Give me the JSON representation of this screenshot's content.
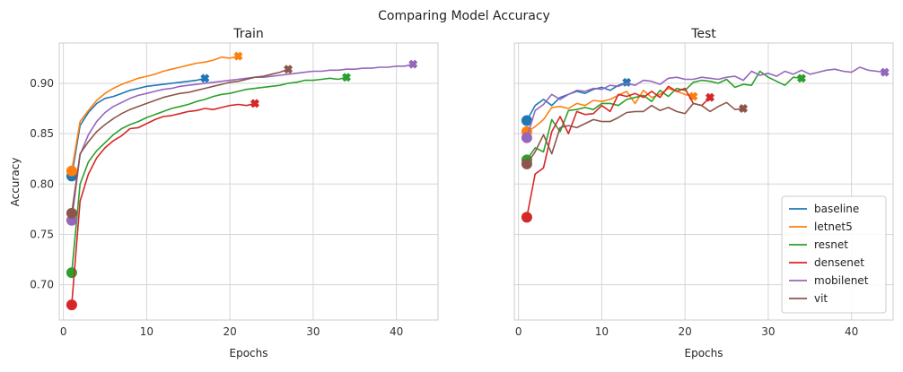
{
  "figure": {
    "title": "Comparing Model Accuracy"
  },
  "colors": {
    "baseline": "#1f77b4",
    "letnet5": "#ff7f0e",
    "resnet": "#2ca02c",
    "densenet": "#d62728",
    "mobilenet": "#9467bd",
    "vit": "#8c564b",
    "grid": "#d5d5d5",
    "axes_edge": "#cccccc"
  },
  "chart_data": [
    {
      "type": "line",
      "title": "Train",
      "xlabel": "Epochs",
      "ylabel": "Accuracy",
      "xlim": [
        -0.5,
        45
      ],
      "ylim": [
        0.665,
        0.94
      ],
      "xticks": [
        0,
        10,
        20,
        30,
        40
      ],
      "yticks": [
        0.7,
        0.75,
        0.8,
        0.85,
        0.9
      ],
      "grid": true,
      "start_marker": "circle",
      "end_marker": "x",
      "series": [
        {
          "name": "baseline",
          "color": "#1f77b4",
          "x": [
            1,
            2,
            3,
            4,
            5,
            6,
            7,
            8,
            9,
            10,
            11,
            12,
            13,
            14,
            15,
            16,
            17
          ],
          "y": [
            0.808,
            0.858,
            0.871,
            0.88,
            0.885,
            0.887,
            0.89,
            0.893,
            0.895,
            0.897,
            0.898,
            0.899,
            0.9,
            0.901,
            0.902,
            0.903,
            0.905
          ]
        },
        {
          "name": "letnet5",
          "color": "#ff7f0e",
          "x": [
            1,
            2,
            3,
            4,
            5,
            6,
            7,
            8,
            9,
            10,
            11,
            12,
            13,
            14,
            15,
            16,
            17,
            18,
            19,
            20,
            21
          ],
          "y": [
            0.813,
            0.862,
            0.873,
            0.883,
            0.89,
            0.895,
            0.899,
            0.902,
            0.905,
            0.907,
            0.909,
            0.912,
            0.914,
            0.916,
            0.918,
            0.92,
            0.921,
            0.923,
            0.926,
            0.925,
            0.927
          ]
        },
        {
          "name": "resnet",
          "color": "#2ca02c",
          "x": [
            1,
            2,
            3,
            4,
            5,
            6,
            7,
            8,
            9,
            10,
            11,
            12,
            13,
            14,
            15,
            16,
            17,
            18,
            19,
            20,
            21,
            22,
            23,
            24,
            25,
            26,
            27,
            28,
            29,
            30,
            31,
            32,
            33,
            34
          ],
          "y": [
            0.712,
            0.8,
            0.822,
            0.833,
            0.841,
            0.849,
            0.855,
            0.859,
            0.862,
            0.866,
            0.869,
            0.872,
            0.875,
            0.877,
            0.879,
            0.882,
            0.884,
            0.887,
            0.889,
            0.89,
            0.892,
            0.894,
            0.895,
            0.896,
            0.897,
            0.898,
            0.9,
            0.901,
            0.903,
            0.903,
            0.904,
            0.905,
            0.904,
            0.906
          ]
        },
        {
          "name": "densenet",
          "color": "#d62728",
          "x": [
            1,
            2,
            3,
            4,
            5,
            6,
            7,
            8,
            9,
            10,
            11,
            12,
            13,
            14,
            15,
            16,
            17,
            18,
            19,
            20,
            21,
            22,
            23
          ],
          "y": [
            0.68,
            0.783,
            0.81,
            0.826,
            0.836,
            0.843,
            0.848,
            0.855,
            0.856,
            0.86,
            0.864,
            0.867,
            0.868,
            0.87,
            0.872,
            0.873,
            0.875,
            0.874,
            0.876,
            0.878,
            0.879,
            0.878,
            0.88
          ]
        },
        {
          "name": "mobilenet",
          "color": "#9467bd",
          "x": [
            1,
            2,
            3,
            4,
            5,
            6,
            7,
            8,
            9,
            10,
            11,
            12,
            13,
            14,
            15,
            16,
            17,
            18,
            19,
            20,
            21,
            22,
            23,
            24,
            25,
            26,
            27,
            28,
            29,
            30,
            31,
            32,
            33,
            34,
            35,
            36,
            37,
            38,
            39,
            40,
            41,
            42
          ],
          "y": [
            0.764,
            0.829,
            0.849,
            0.862,
            0.871,
            0.877,
            0.881,
            0.885,
            0.888,
            0.89,
            0.892,
            0.894,
            0.895,
            0.897,
            0.898,
            0.899,
            0.9,
            0.901,
            0.902,
            0.903,
            0.904,
            0.905,
            0.906,
            0.906,
            0.907,
            0.908,
            0.909,
            0.91,
            0.911,
            0.912,
            0.912,
            0.913,
            0.913,
            0.914,
            0.914,
            0.915,
            0.915,
            0.916,
            0.916,
            0.917,
            0.917,
            0.919
          ]
        },
        {
          "name": "vit",
          "color": "#8c564b",
          "x": [
            1,
            2,
            3,
            4,
            5,
            6,
            7,
            8,
            9,
            10,
            11,
            12,
            13,
            14,
            15,
            16,
            17,
            18,
            19,
            20,
            21,
            22,
            23,
            24,
            25,
            26,
            27
          ],
          "y": [
            0.771,
            0.83,
            0.842,
            0.852,
            0.859,
            0.865,
            0.87,
            0.874,
            0.877,
            0.88,
            0.883,
            0.886,
            0.888,
            0.89,
            0.891,
            0.893,
            0.895,
            0.897,
            0.899,
            0.901,
            0.902,
            0.904,
            0.906,
            0.907,
            0.909,
            0.911,
            0.914
          ]
        }
      ]
    },
    {
      "type": "line",
      "title": "Test",
      "xlabel": "Epochs",
      "ylabel": "",
      "xlim": [
        -0.5,
        45
      ],
      "ylim": [
        0.665,
        0.94
      ],
      "xticks": [
        0,
        10,
        20,
        30,
        40
      ],
      "yticks": [
        0.7,
        0.75,
        0.8,
        0.85,
        0.9
      ],
      "show_yticklabels": false,
      "grid": true,
      "legend": "lower right",
      "start_marker": "circle",
      "end_marker": "x",
      "series": [
        {
          "name": "baseline",
          "color": "#1f77b4",
          "x": [
            1,
            2,
            3,
            4,
            5,
            6,
            7,
            8,
            9,
            10,
            11,
            12,
            13
          ],
          "y": [
            0.863,
            0.878,
            0.884,
            0.878,
            0.886,
            0.889,
            0.892,
            0.89,
            0.894,
            0.896,
            0.893,
            0.898,
            0.901
          ]
        },
        {
          "name": "letnet5",
          "color": "#ff7f0e",
          "x": [
            1,
            2,
            3,
            4,
            5,
            6,
            7,
            8,
            9,
            10,
            11,
            12,
            13,
            14,
            15,
            16,
            17,
            18,
            19,
            20,
            21
          ],
          "y": [
            0.852,
            0.857,
            0.864,
            0.876,
            0.877,
            0.875,
            0.88,
            0.878,
            0.883,
            0.882,
            0.884,
            0.888,
            0.892,
            0.88,
            0.893,
            0.886,
            0.889,
            0.895,
            0.892,
            0.889,
            0.887
          ]
        },
        {
          "name": "resnet",
          "color": "#2ca02c",
          "x": [
            1,
            2,
            3,
            4,
            5,
            6,
            7,
            8,
            9,
            10,
            11,
            12,
            13,
            14,
            15,
            16,
            17,
            18,
            19,
            20,
            21,
            22,
            23,
            24,
            25,
            26,
            27,
            28,
            29,
            30,
            31,
            32,
            33,
            34
          ],
          "y": [
            0.824,
            0.836,
            0.832,
            0.864,
            0.852,
            0.873,
            0.874,
            0.876,
            0.874,
            0.88,
            0.88,
            0.878,
            0.884,
            0.886,
            0.888,
            0.882,
            0.893,
            0.887,
            0.895,
            0.893,
            0.901,
            0.903,
            0.902,
            0.9,
            0.904,
            0.896,
            0.899,
            0.898,
            0.912,
            0.906,
            0.902,
            0.898,
            0.906,
            0.905
          ]
        },
        {
          "name": "densenet",
          "color": "#d62728",
          "x": [
            1,
            2,
            3,
            4,
            5,
            6,
            7,
            8,
            9,
            10,
            11,
            12,
            13,
            14,
            15,
            16,
            17,
            18,
            19,
            20,
            21,
            22,
            23
          ],
          "y": [
            0.767,
            0.81,
            0.816,
            0.852,
            0.867,
            0.85,
            0.872,
            0.869,
            0.87,
            0.878,
            0.872,
            0.889,
            0.887,
            0.89,
            0.886,
            0.892,
            0.886,
            0.897,
            0.892,
            0.895,
            0.88,
            0.878,
            0.886
          ]
        },
        {
          "name": "mobilenet",
          "color": "#9467bd",
          "x": [
            1,
            2,
            3,
            4,
            5,
            6,
            7,
            8,
            9,
            10,
            11,
            12,
            13,
            14,
            15,
            16,
            17,
            18,
            19,
            20,
            21,
            22,
            23,
            24,
            25,
            26,
            27,
            28,
            29,
            30,
            31,
            32,
            33,
            34,
            35,
            36,
            37,
            38,
            39,
            40,
            41,
            42,
            43,
            44
          ],
          "y": [
            0.846,
            0.873,
            0.879,
            0.889,
            0.884,
            0.889,
            0.893,
            0.892,
            0.895,
            0.894,
            0.898,
            0.897,
            0.9,
            0.898,
            0.903,
            0.902,
            0.899,
            0.905,
            0.906,
            0.904,
            0.904,
            0.906,
            0.905,
            0.904,
            0.906,
            0.907,
            0.903,
            0.912,
            0.908,
            0.91,
            0.907,
            0.912,
            0.909,
            0.913,
            0.909,
            0.911,
            0.913,
            0.914,
            0.912,
            0.911,
            0.916,
            0.913,
            0.912,
            0.911
          ]
        },
        {
          "name": "vit",
          "color": "#8c564b",
          "x": [
            1,
            2,
            3,
            4,
            5,
            6,
            7,
            8,
            9,
            10,
            11,
            12,
            13,
            14,
            15,
            16,
            17,
            18,
            19,
            20,
            21,
            22,
            23,
            24,
            25,
            26,
            27
          ],
          "y": [
            0.82,
            0.832,
            0.849,
            0.83,
            0.856,
            0.858,
            0.856,
            0.86,
            0.864,
            0.862,
            0.862,
            0.866,
            0.871,
            0.872,
            0.872,
            0.878,
            0.873,
            0.876,
            0.872,
            0.87,
            0.88,
            0.878,
            0.872,
            0.877,
            0.881,
            0.874,
            0.875
          ]
        }
      ]
    }
  ]
}
